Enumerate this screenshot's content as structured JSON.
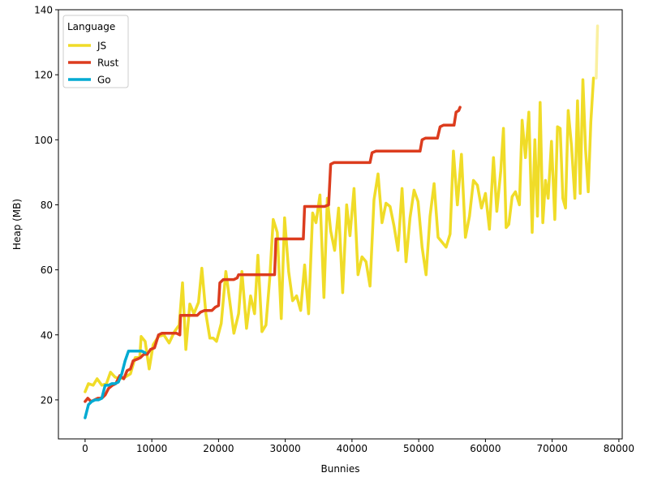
{
  "chart_data": {
    "type": "line",
    "title": "",
    "xlabel": "Bunnies",
    "ylabel": "Heap (MB)",
    "xlim": [
      -4000,
      80500
    ],
    "ylim": [
      8,
      140
    ],
    "xticks": [
      0,
      10000,
      20000,
      30000,
      40000,
      50000,
      60000,
      70000,
      80000
    ],
    "xtick_labels": [
      "0",
      "10000",
      "20000",
      "30000",
      "40000",
      "50000",
      "60000",
      "70000",
      "80000"
    ],
    "yticks": [
      20,
      40,
      60,
      80,
      100,
      120,
      140
    ],
    "ytick_labels": [
      "20",
      "40",
      "60",
      "80",
      "100",
      "120",
      "140"
    ],
    "grid": false,
    "legend": {
      "title": "Language",
      "placement": "top-left"
    },
    "series": [
      {
        "name": "JS",
        "color": "#f0dc28",
        "points": [
          [
            0,
            22.5
          ],
          [
            500,
            25
          ],
          [
            1200,
            24.5
          ],
          [
            1800,
            26.5
          ],
          [
            2500,
            24.5
          ],
          [
            3200,
            25
          ],
          [
            3800,
            28.5
          ],
          [
            4500,
            27
          ],
          [
            5200,
            26.5
          ],
          [
            6000,
            27
          ],
          [
            6800,
            28
          ],
          [
            7500,
            33
          ],
          [
            8200,
            33
          ],
          [
            8400,
            39.5
          ],
          [
            9000,
            38
          ],
          [
            9600,
            29.5
          ],
          [
            10200,
            37
          ],
          [
            11000,
            39.5
          ],
          [
            11800,
            40
          ],
          [
            12600,
            37.5
          ],
          [
            13400,
            41
          ],
          [
            14100,
            43
          ],
          [
            14600,
            56
          ],
          [
            15100,
            35.5
          ],
          [
            15700,
            49.5
          ],
          [
            16300,
            46.5
          ],
          [
            17000,
            50
          ],
          [
            17500,
            60.5
          ],
          [
            18100,
            46.5
          ],
          [
            18700,
            39
          ],
          [
            19200,
            39
          ],
          [
            19700,
            38
          ],
          [
            20400,
            43.5
          ],
          [
            21100,
            59.5
          ],
          [
            21700,
            50
          ],
          [
            22300,
            40.5
          ],
          [
            23000,
            46.5
          ],
          [
            23500,
            59.5
          ],
          [
            24200,
            42
          ],
          [
            24800,
            52
          ],
          [
            25400,
            46.5
          ],
          [
            25900,
            64.5
          ],
          [
            26500,
            41
          ],
          [
            27100,
            43
          ],
          [
            27700,
            58
          ],
          [
            28200,
            75.5
          ],
          [
            28800,
            71.5
          ],
          [
            29400,
            45
          ],
          [
            29900,
            76
          ],
          [
            30500,
            59.5
          ],
          [
            31100,
            50.5
          ],
          [
            31700,
            52
          ],
          [
            32300,
            47.5
          ],
          [
            32900,
            61.5
          ],
          [
            33500,
            46.5
          ],
          [
            34100,
            77.5
          ],
          [
            34600,
            74.5
          ],
          [
            35200,
            83
          ],
          [
            35800,
            51.5
          ],
          [
            36300,
            82
          ],
          [
            36800,
            72
          ],
          [
            37400,
            66
          ],
          [
            38000,
            79
          ],
          [
            38600,
            53
          ],
          [
            39200,
            80
          ],
          [
            39700,
            70.5
          ],
          [
            40300,
            85
          ],
          [
            40900,
            58.5
          ],
          [
            41500,
            64
          ],
          [
            42100,
            62.5
          ],
          [
            42700,
            55
          ],
          [
            43300,
            81.5
          ],
          [
            43900,
            89.5
          ],
          [
            44500,
            74.5
          ],
          [
            45100,
            80.5
          ],
          [
            45700,
            79.5
          ],
          [
            46300,
            73.5
          ],
          [
            46900,
            66
          ],
          [
            47500,
            85
          ],
          [
            48100,
            62.5
          ],
          [
            48700,
            76
          ],
          [
            49300,
            84.5
          ],
          [
            49900,
            81
          ],
          [
            50500,
            67
          ],
          [
            51100,
            58.5
          ],
          [
            51700,
            76.5
          ],
          [
            52300,
            86.5
          ],
          [
            52900,
            70
          ],
          [
            53500,
            68.5
          ],
          [
            54100,
            67
          ],
          [
            54700,
            71
          ],
          [
            55200,
            96.5
          ],
          [
            55800,
            80
          ],
          [
            56400,
            95.5
          ],
          [
            57000,
            70
          ],
          [
            57600,
            76.5
          ],
          [
            58200,
            87.5
          ],
          [
            58800,
            86
          ],
          [
            59400,
            79
          ],
          [
            60000,
            83.5
          ],
          [
            60600,
            72.5
          ],
          [
            61200,
            94.5
          ],
          [
            61700,
            78
          ],
          [
            62300,
            90.5
          ],
          [
            62700,
            103.5
          ],
          [
            63100,
            73
          ],
          [
            63500,
            74
          ],
          [
            64000,
            82.5
          ],
          [
            64500,
            84
          ],
          [
            65100,
            80
          ],
          [
            65500,
            106
          ],
          [
            66000,
            94.5
          ],
          [
            66500,
            108.5
          ],
          [
            67000,
            71.5
          ],
          [
            67400,
            100
          ],
          [
            67800,
            76.5
          ],
          [
            68200,
            111.5
          ],
          [
            68600,
            74.5
          ],
          [
            69000,
            87.5
          ],
          [
            69400,
            82
          ],
          [
            69900,
            99.5
          ],
          [
            70400,
            75.5
          ],
          [
            70800,
            104
          ],
          [
            71200,
            103.5
          ],
          [
            71600,
            82
          ],
          [
            72000,
            79
          ],
          [
            72400,
            109
          ],
          [
            72900,
            98
          ],
          [
            73400,
            82
          ],
          [
            73800,
            112
          ],
          [
            74200,
            83.5
          ],
          [
            74600,
            118.5
          ],
          [
            75000,
            97
          ],
          [
            75400,
            84
          ],
          [
            75800,
            105.5
          ],
          [
            76200,
            119
          ]
        ]
      },
      {
        "name": "Rust",
        "color": "#dc3c1e",
        "points": [
          [
            0,
            19.5
          ],
          [
            400,
            20.5
          ],
          [
            900,
            19.5
          ],
          [
            1400,
            20
          ],
          [
            1900,
            20.5
          ],
          [
            2500,
            20.5
          ],
          [
            3000,
            21.5
          ],
          [
            3500,
            23.5
          ],
          [
            4100,
            24.5
          ],
          [
            4600,
            25
          ],
          [
            5200,
            27.5
          ],
          [
            5800,
            26.5
          ],
          [
            6300,
            29
          ],
          [
            6800,
            29.5
          ],
          [
            7200,
            32
          ],
          [
            7800,
            32.5
          ],
          [
            8300,
            33
          ],
          [
            8800,
            34
          ],
          [
            9300,
            34
          ],
          [
            9800,
            35.5
          ],
          [
            10400,
            36
          ],
          [
            11000,
            40
          ],
          [
            11500,
            40.5
          ],
          [
            12100,
            40.5
          ],
          [
            12700,
            40.5
          ],
          [
            13200,
            40.5
          ],
          [
            13700,
            40.5
          ],
          [
            14200,
            40
          ],
          [
            14300,
            46
          ],
          [
            15000,
            46
          ],
          [
            15600,
            46
          ],
          [
            16200,
            46
          ],
          [
            16800,
            46
          ],
          [
            17300,
            47
          ],
          [
            17900,
            47.5
          ],
          [
            18400,
            47.5
          ],
          [
            19000,
            47.5
          ],
          [
            19500,
            48.5
          ],
          [
            20000,
            49
          ],
          [
            20200,
            56
          ],
          [
            20700,
            57
          ],
          [
            21200,
            57
          ],
          [
            21800,
            57
          ],
          [
            22300,
            57
          ],
          [
            22800,
            57.5
          ],
          [
            23000,
            58.5
          ],
          [
            23500,
            58.5
          ],
          [
            24100,
            58.5
          ],
          [
            24700,
            58.5
          ],
          [
            25200,
            58.5
          ],
          [
            25800,
            58.5
          ],
          [
            26400,
            58.5
          ],
          [
            26900,
            58.5
          ],
          [
            27500,
            58.5
          ],
          [
            28000,
            58.5
          ],
          [
            28400,
            58.5
          ],
          [
            28600,
            69.5
          ],
          [
            29200,
            69.5
          ],
          [
            29800,
            69.5
          ],
          [
            30400,
            69.5
          ],
          [
            31000,
            69.5
          ],
          [
            31600,
            69.5
          ],
          [
            32200,
            69.5
          ],
          [
            32700,
            69.5
          ],
          [
            32900,
            79.5
          ],
          [
            33500,
            79.5
          ],
          [
            34100,
            79.5
          ],
          [
            34700,
            79.5
          ],
          [
            35300,
            79.5
          ],
          [
            35900,
            79.5
          ],
          [
            36500,
            80
          ],
          [
            36800,
            92.5
          ],
          [
            37300,
            93
          ],
          [
            37900,
            93
          ],
          [
            38500,
            93
          ],
          [
            39100,
            93
          ],
          [
            39700,
            93
          ],
          [
            40300,
            93
          ],
          [
            40900,
            93
          ],
          [
            41500,
            93
          ],
          [
            42100,
            93
          ],
          [
            42700,
            93
          ],
          [
            43000,
            96
          ],
          [
            43600,
            96.5
          ],
          [
            44200,
            96.5
          ],
          [
            44800,
            96.5
          ],
          [
            45400,
            96.5
          ],
          [
            46000,
            96.5
          ],
          [
            46600,
            96.5
          ],
          [
            47200,
            96.5
          ],
          [
            47800,
            96.5
          ],
          [
            48400,
            96.5
          ],
          [
            49000,
            96.5
          ],
          [
            49600,
            96.5
          ],
          [
            50200,
            96.5
          ],
          [
            50500,
            100
          ],
          [
            51000,
            100.5
          ],
          [
            51600,
            100.5
          ],
          [
            52200,
            100.5
          ],
          [
            52800,
            100.5
          ],
          [
            53200,
            104
          ],
          [
            53700,
            104.5
          ],
          [
            54300,
            104.5
          ],
          [
            54900,
            104.5
          ],
          [
            55300,
            104.5
          ],
          [
            55600,
            108.5
          ],
          [
            56000,
            109
          ],
          [
            56200,
            110
          ]
        ]
      },
      {
        "name": "Go",
        "color": "#00aad2",
        "points": [
          [
            0,
            14.5
          ],
          [
            500,
            18.5
          ],
          [
            1000,
            19.5
          ],
          [
            1500,
            20
          ],
          [
            2000,
            20
          ],
          [
            2500,
            20.5
          ],
          [
            3000,
            24.5
          ],
          [
            3500,
            24.5
          ],
          [
            4000,
            25
          ],
          [
            4500,
            25
          ],
          [
            5000,
            25.5
          ],
          [
            5500,
            28
          ],
          [
            6000,
            32
          ],
          [
            6500,
            35
          ],
          [
            7000,
            35
          ],
          [
            7500,
            35
          ],
          [
            8000,
            35
          ],
          [
            8500,
            35
          ],
          [
            9000,
            34.5
          ]
        ]
      },
      {
        "name": "",
        "color": "#faf0a0",
        "points": [
          [
            76600,
            119
          ],
          [
            76700,
            127
          ],
          [
            76800,
            135
          ]
        ]
      }
    ]
  }
}
